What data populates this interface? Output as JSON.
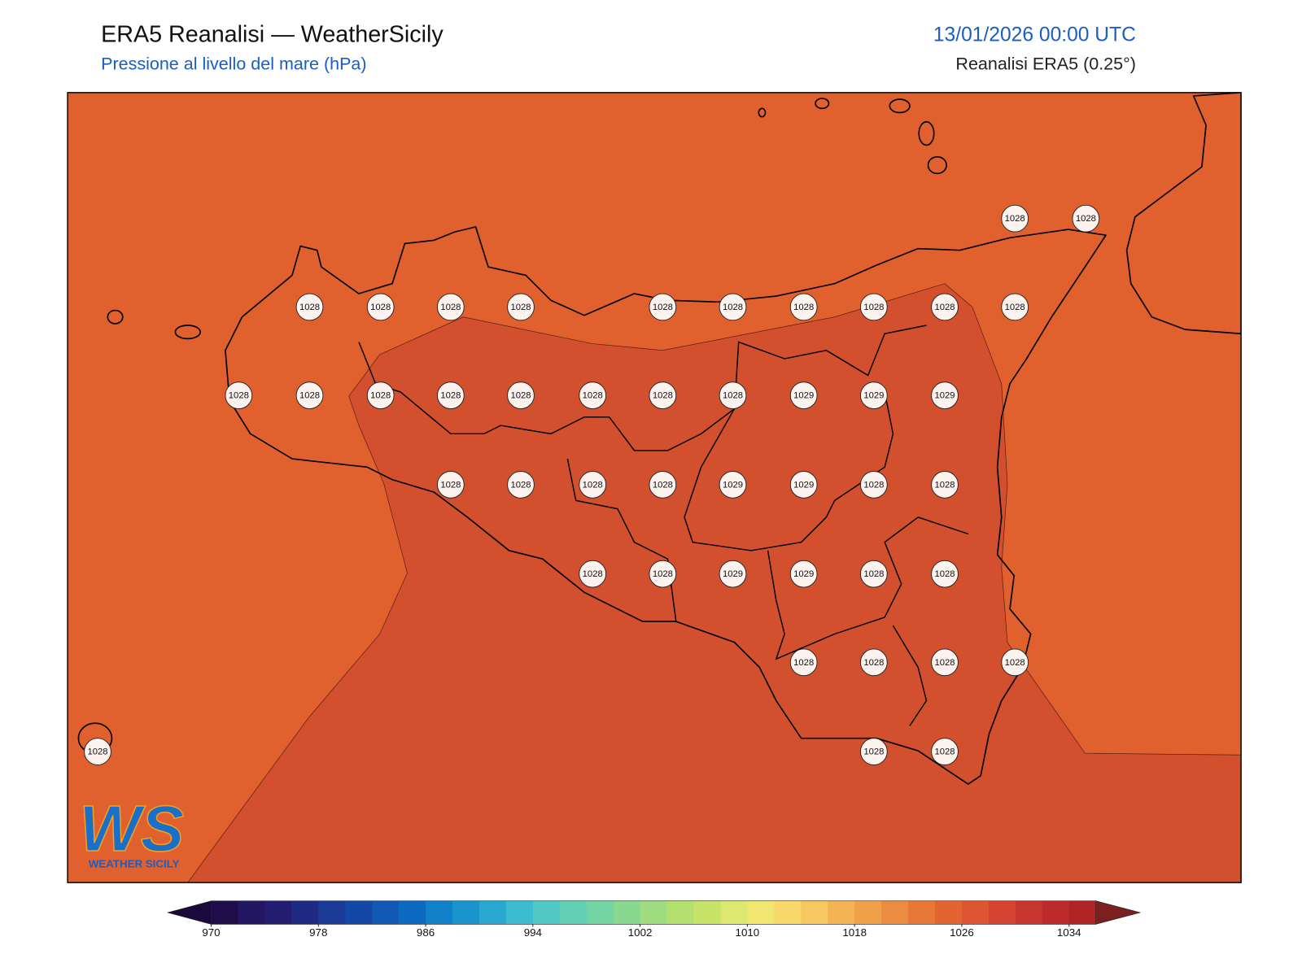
{
  "header": {
    "title": "ERA5 Reanalisi — WeatherSicily",
    "subtitle": "Pressione al livello del mare (hPa)",
    "datetime": "13/01/2026 00:00 UTC",
    "source": "Reanalisi ERA5 (0.25°)"
  },
  "map": {
    "station_values": [
      1028,
      1028,
      1028,
      1028,
      1028,
      1028,
      1028,
      1028,
      1028,
      1028,
      1028,
      1028,
      1028,
      1028,
      1028,
      1028,
      1028,
      1028,
      1028,
      1028,
      1029,
      1029,
      1029,
      1028,
      1028,
      1028,
      1028,
      1029,
      1029,
      1028,
      1028,
      1028,
      1028,
      1029,
      1029,
      1028,
      1028,
      1028,
      1028,
      1028,
      1028,
      1028,
      1028,
      1028
    ]
  },
  "colorbar": {
    "lim": [
      970,
      1036
    ],
    "ticks": [
      970,
      978,
      986,
      994,
      1002,
      1010,
      1018,
      1026,
      1034
    ],
    "colors": [
      "#1f0d4a",
      "#221660",
      "#231e72",
      "#1f2a84",
      "#1a3a96",
      "#1448a6",
      "#1058b4",
      "#0c6ac0",
      "#1080c8",
      "#1a94cc",
      "#28a8d0",
      "#3cbcd0",
      "#50c8c4",
      "#62d0b4",
      "#74d4a4",
      "#88d890",
      "#a0dc80",
      "#b4e070",
      "#c8e468",
      "#dce870",
      "#f0e670",
      "#f8d868",
      "#f8c860",
      "#f4b454",
      "#f0a048",
      "#ec8c40",
      "#e87838",
      "#e26430",
      "#dc5430",
      "#d44430",
      "#c83630",
      "#bc2a2c",
      "#b02428"
    ],
    "under_color": "#1a0a3c",
    "over_color": "#7a2020"
  },
  "logo": {
    "mark": "WS",
    "caption": "WEATHER SICILY"
  }
}
